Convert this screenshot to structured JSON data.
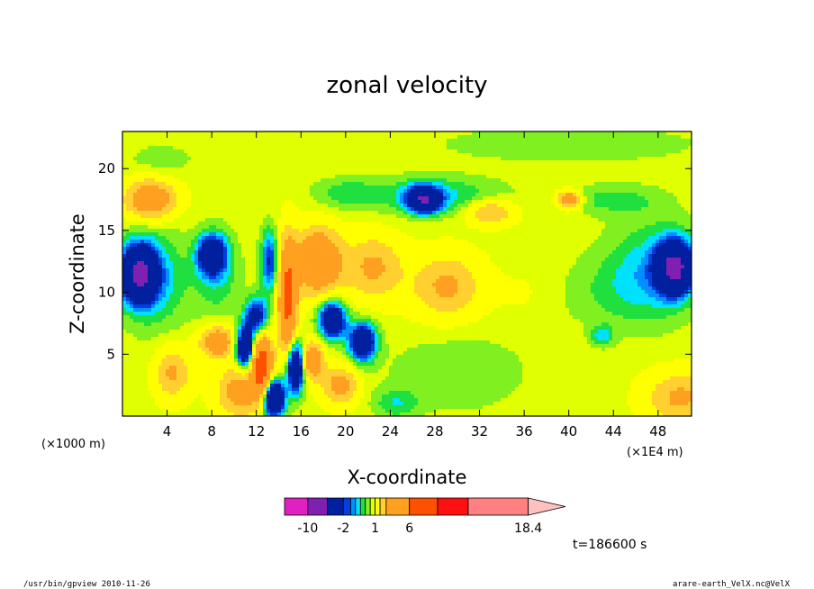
{
  "chart_data": {
    "type": "heatmap",
    "title": "zonal velocity",
    "xlabel": "X-coordinate",
    "ylabel": "Z-coordinate",
    "x_unit": "(×1E4 m)",
    "y_unit": "(×1000 m)",
    "xlim": [
      0,
      51
    ],
    "ylim": [
      0,
      23
    ],
    "x_ticks": [
      4,
      8,
      12,
      16,
      20,
      24,
      28,
      32,
      36,
      40,
      44,
      48
    ],
    "y_ticks": [
      5,
      10,
      15,
      20
    ],
    "colorbar": {
      "levels": [
        -14,
        -10,
        -6,
        -2,
        -1.5,
        -1,
        -0.5,
        0,
        0.5,
        1,
        2,
        3,
        6,
        10,
        14,
        18.4,
        22
      ],
      "colors": [
        "#e020c0",
        "#8020b0",
        "#0020a0",
        "#0040e0",
        "#0090ff",
        "#00e0ff",
        "#20e040",
        "#80f020",
        "#e0ff00",
        "#ffff00",
        "#ffd030",
        "#ffa020",
        "#ff5000",
        "#ff1010",
        "#ff8080",
        "#ffc0c0"
      ],
      "tick_labels": [
        {
          "value": -10,
          "label": "-10"
        },
        {
          "value": -2,
          "label": "-2"
        },
        {
          "value": 1,
          "label": "1"
        },
        {
          "value": 6,
          "label": "6"
        },
        {
          "value": 18.4,
          "label": "18.4"
        }
      ]
    },
    "features": [
      {
        "x": 1.5,
        "z": 11.5,
        "sx": 1.6,
        "sz": 2.2,
        "v": -7
      },
      {
        "x": 3.0,
        "z": 11.0,
        "sx": 3.0,
        "sz": 4.0,
        "v": -1.5
      },
      {
        "x": 2.5,
        "z": 17.5,
        "sx": 2.2,
        "sz": 1.5,
        "v": 4
      },
      {
        "x": 3.5,
        "z": 20.8,
        "sx": 3.0,
        "sz": 1.2,
        "v": -0.6
      },
      {
        "x": 8.0,
        "z": 13.0,
        "sx": 1.2,
        "sz": 1.5,
        "v": -5
      },
      {
        "x": 8.5,
        "z": 11.5,
        "sx": 2.0,
        "sz": 3.5,
        "v": -1.2
      },
      {
        "x": 8.5,
        "z": 6.0,
        "sx": 1.5,
        "sz": 1.2,
        "v": 4
      },
      {
        "x": 11.0,
        "z": 5.5,
        "sx": 0.8,
        "sz": 1.6,
        "v": -6
      },
      {
        "x": 12.5,
        "z": 4.0,
        "sx": 0.9,
        "sz": 2.5,
        "v": 7
      },
      {
        "x": 12.0,
        "z": 8.0,
        "sx": 1.0,
        "sz": 1.5,
        "v": -4
      },
      {
        "x": 13.5,
        "z": 1.5,
        "sx": 1.0,
        "sz": 1.5,
        "v": -7
      },
      {
        "x": 13.2,
        "z": 12.5,
        "sx": 0.8,
        "sz": 2.5,
        "v": -3
      },
      {
        "x": 14.8,
        "z": 9.5,
        "sx": 0.8,
        "sz": 4.5,
        "v": 6
      },
      {
        "x": 15.5,
        "z": 4.0,
        "sx": 0.8,
        "sz": 2.0,
        "v": -6
      },
      {
        "x": 17.5,
        "z": 12.5,
        "sx": 2.0,
        "sz": 2.5,
        "v": 5
      },
      {
        "x": 17.0,
        "z": 4.5,
        "sx": 1.0,
        "sz": 1.5,
        "v": 4
      },
      {
        "x": 18.8,
        "z": 7.8,
        "sx": 1.2,
        "sz": 1.5,
        "v": -5
      },
      {
        "x": 21.5,
        "z": 6.0,
        "sx": 1.2,
        "sz": 1.5,
        "v": -5
      },
      {
        "x": 19.5,
        "z": 2.5,
        "sx": 1.5,
        "sz": 1.5,
        "v": 3
      },
      {
        "x": 20.0,
        "z": 18.0,
        "sx": 3.0,
        "sz": 1.2,
        "v": -1
      },
      {
        "x": 27.0,
        "z": 17.5,
        "sx": 1.4,
        "sz": 1.0,
        "v": -6
      },
      {
        "x": 28.0,
        "z": 17.8,
        "sx": 6.0,
        "sz": 1.5,
        "v": -1.5
      },
      {
        "x": 22.5,
        "z": 12.0,
        "sx": 2.5,
        "sz": 2.5,
        "v": 2.5
      },
      {
        "x": 29.0,
        "z": 10.5,
        "sx": 3.0,
        "sz": 2.5,
        "v": 2.5
      },
      {
        "x": 36.0,
        "z": 10.0,
        "sx": 2.5,
        "sz": 2.0,
        "v": 0.3
      },
      {
        "x": 30.0,
        "z": 3.5,
        "sx": 6.0,
        "sz": 3.0,
        "v": -0.8
      },
      {
        "x": 40.0,
        "z": 17.5,
        "sx": 1.0,
        "sz": 0.7,
        "v": 4
      },
      {
        "x": 33.0,
        "z": 16.5,
        "sx": 2.0,
        "sz": 1.0,
        "v": 2.5
      },
      {
        "x": 40.0,
        "z": 22.0,
        "sx": 12.0,
        "sz": 1.5,
        "v": -0.7
      },
      {
        "x": 49.5,
        "z": 12.0,
        "sx": 1.6,
        "sz": 2.0,
        "v": -7
      },
      {
        "x": 47.5,
        "z": 12.0,
        "sx": 4.0,
        "sz": 4.0,
        "v": -1.5
      },
      {
        "x": 43.0,
        "z": 6.5,
        "sx": 1.0,
        "sz": 0.8,
        "v": -1.5
      },
      {
        "x": 44.0,
        "z": 10.0,
        "sx": 5.0,
        "sz": 3.0,
        "v": -0.7
      },
      {
        "x": 50.0,
        "z": 1.5,
        "sx": 3.0,
        "sz": 2.0,
        "v": 2.5
      },
      {
        "x": 10.5,
        "z": 2.0,
        "sx": 2.0,
        "sz": 2.0,
        "v": 3
      },
      {
        "x": 4.5,
        "z": 3.5,
        "sx": 1.5,
        "sz": 2.0,
        "v": 2.5
      },
      {
        "x": 24.5,
        "z": 1.0,
        "sx": 2.0,
        "sz": 1.2,
        "v": -1.2
      },
      {
        "x": 44.0,
        "z": 17.5,
        "sx": 4.0,
        "sz": 1.2,
        "v": -1
      }
    ]
  },
  "time_label": "t=186600 s",
  "footer_left": "/usr/bin/gpview  2010-11-26",
  "footer_right": "arare-earth_VelX.nc@VelX"
}
